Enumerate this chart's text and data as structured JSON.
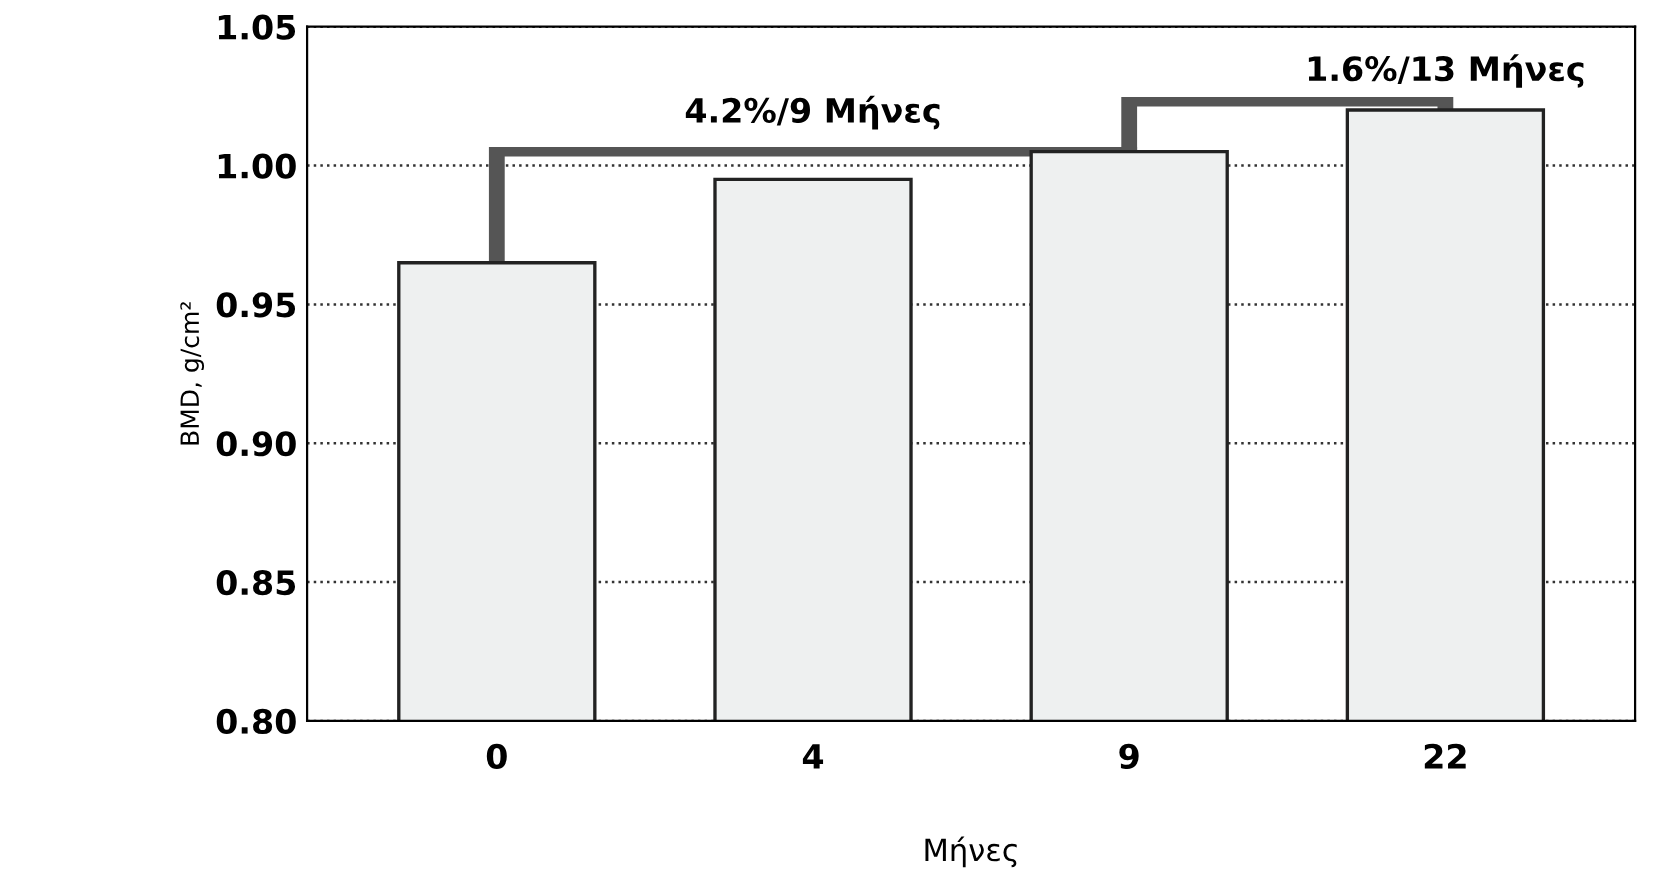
{
  "chart_data": {
    "type": "bar",
    "xlabel": "Μήνες",
    "ylabel": "BMD, g/cm²",
    "categories": [
      "0",
      "4",
      "9",
      "22"
    ],
    "values": [
      0.965,
      0.995,
      1.005,
      1.02
    ],
    "color": "#eef0f0",
    "ylim": [
      0.8,
      1.05
    ],
    "yticks": [
      {
        "value": 0.8,
        "label": "0.80"
      },
      0.85,
      {
        "value": 0.9,
        "label": "0.90"
      },
      0.95,
      {
        "value": 1.0,
        "label": "1.00"
      },
      1.05
    ],
    "grid": "y",
    "line_style": "dotted",
    "annotations": [
      "4.2%/9 Μήνες",
      {
        "text": "1.6%/13 Μήνες",
        "x": "22",
        "y": 1.02
      }
    ]
  }
}
